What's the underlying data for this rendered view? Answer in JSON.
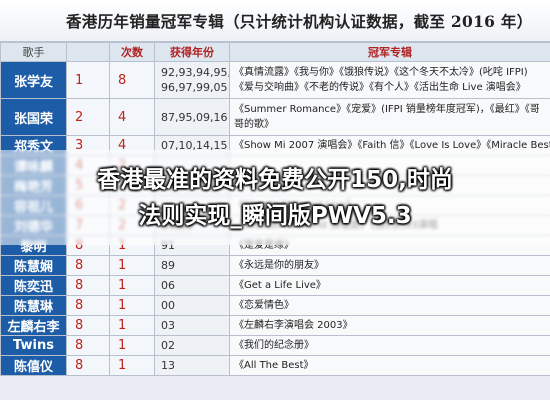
{
  "title": "香港历年销量冠军专辑（只计统计机构认证数据，截至 2016 年）",
  "headers": {
    "singer": "歌手",
    "count": "次数",
    "years": "获得年份",
    "albums": "冠军专辑"
  },
  "rows": [
    {
      "singer": "张学友",
      "rank": "1",
      "count": "8",
      "years": [
        "92,93,94,95,",
        "96,97,99,05"
      ],
      "albums": [
        "《真情流露》《我与你》《饿狼传说》《这个冬天不太冷》(叱咤 IFPI)",
        "《爱与交响曲》《不老的传说》《有个人》《活出生命 Live 演唱会》"
      ]
    },
    {
      "singer": "张国荣",
      "rank": "2",
      "count": "4",
      "years": [
        "87,95,09,16"
      ],
      "albums": [
        "《Summer Romance》《宠爱》(IFPI 销量榜年度冠军)，《最红》《哥",
        "哥的歌》"
      ]
    },
    {
      "singer": "郑秀文",
      "rank": "3",
      "count": "4",
      "years": [
        "07,10,14,15"
      ],
      "albums": [
        "《Show Mi 2007 演唱会》《Faith 信》《Love Is Love》《Miracle Best"
      ]
    },
    {
      "singer": "谭咏麟",
      "rank": "4",
      "count": "2",
      "years": [
        ""
      ],
      "albums": [
        ""
      ]
    },
    {
      "singer": "梅艳芳",
      "rank": "5",
      "count": "2",
      "years": [
        ""
      ],
      "albums": [
        ""
      ]
    },
    {
      "singer": "容祖儿",
      "rank": "6",
      "count": "2",
      "years": [
        ""
      ],
      "albums": [
        "《Classic Moment Live》"
      ]
    },
    {
      "singer": "刘德华",
      "rank": "7",
      "count": "2",
      "years": [
        "84,86"
      ],
      "albums": [
        "《Wonderful World 演唱会》《我们的93演唱"
      ]
    },
    {
      "singer": "黎明",
      "rank": "8",
      "count": "1",
      "years": [
        "91"
      ],
      "albums": [
        "《是爱是缘》"
      ]
    },
    {
      "singer": "陈慧娴",
      "rank": "8",
      "count": "1",
      "years": [
        "89"
      ],
      "albums": [
        "《永远是你的朋友》"
      ]
    },
    {
      "singer": "陈奕迅",
      "rank": "8",
      "count": "1",
      "years": [
        "06"
      ],
      "albums": [
        "《Get a Life Live》"
      ]
    },
    {
      "singer": "陈慧琳",
      "rank": "8",
      "count": "1",
      "years": [
        "00"
      ],
      "albums": [
        "《恋爱情色》"
      ]
    },
    {
      "singer": "左麟右李",
      "rank": "8",
      "count": "1",
      "years": [
        "03"
      ],
      "albums": [
        "《左麟右李演唱会 2003》"
      ]
    },
    {
      "singer": "Twins",
      "rank": "8",
      "count": "1",
      "years": [
        "02"
      ],
      "albums": [
        "《我们的纪念册》"
      ]
    },
    {
      "singer": "陈僖仪",
      "rank": "8",
      "count": "1",
      "years": [
        "13"
      ],
      "albums": [
        "《All The Best》"
      ]
    }
  ],
  "overlay": {
    "line1": "香港最准的资料免费公开150,时尚",
    "line2": "法则实现_瞬间版PWV5.3"
  }
}
